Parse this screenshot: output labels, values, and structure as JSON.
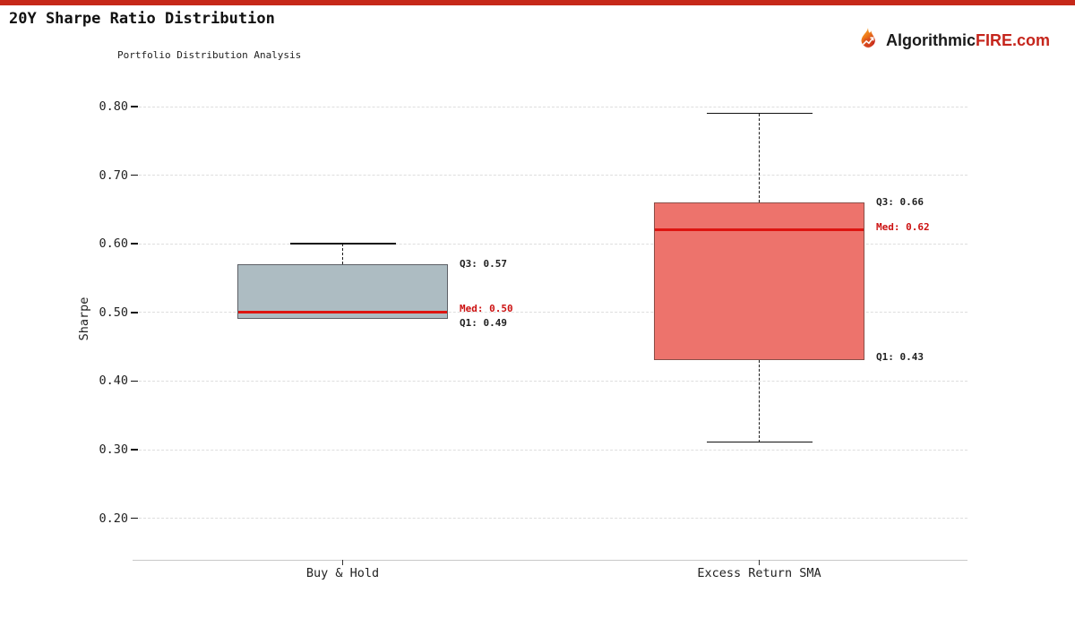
{
  "page": {
    "accent_bar_color": "#c62819"
  },
  "header": {
    "title": "20Y Sharpe Ratio Distribution",
    "subtitle": "Portfolio Distribution Analysis"
  },
  "brand": {
    "icon": "flame-icon",
    "text_dark": "Algorithmic",
    "text_red": "FIRE",
    "text_suffix": ".com",
    "color_dark": "#1a1a1a",
    "color_red": "#c5251c"
  },
  "chart_data": {
    "type": "box",
    "title": "20Y Sharpe Ratio Distribution",
    "subtitle": "Portfolio Distribution Analysis",
    "xlabel": "",
    "ylabel": "Sharpe",
    "ylim": [
      0.14,
      0.81
    ],
    "grid": "horizontal-dashed",
    "legend": "none",
    "yticks": [
      0.8,
      0.7,
      0.6,
      0.5,
      0.4,
      0.3,
      0.2
    ],
    "ytick_labels": [
      "0.80",
      "0.70",
      "0.60",
      "0.50",
      "0.40",
      "0.30",
      "0.20"
    ],
    "categories": [
      "Buy & Hold",
      "Excess Return SMA"
    ],
    "series": [
      {
        "name": "Buy & Hold",
        "min": 0.49,
        "q1": 0.49,
        "median": 0.5,
        "q3": 0.57,
        "max": 0.6,
        "fill": "#adbcc2",
        "edge": "#5d6066",
        "annotations": {
          "q3": "Q3: 0.57",
          "med": "Med: 0.50",
          "q1": "Q1: 0.49"
        }
      },
      {
        "name": "Excess Return SMA",
        "min": 0.31,
        "q1": 0.43,
        "median": 0.62,
        "q3": 0.66,
        "max": 0.79,
        "fill": "#ed736c",
        "edge": "#8a4f49",
        "annotations": {
          "q3": "Q3: 0.66",
          "med": "Med: 0.62",
          "q1": "Q1: 0.43"
        }
      }
    ],
    "median_color": "#dd1511",
    "annotation_med_color": "#cc1111",
    "annotation_text_color": "#222222"
  }
}
